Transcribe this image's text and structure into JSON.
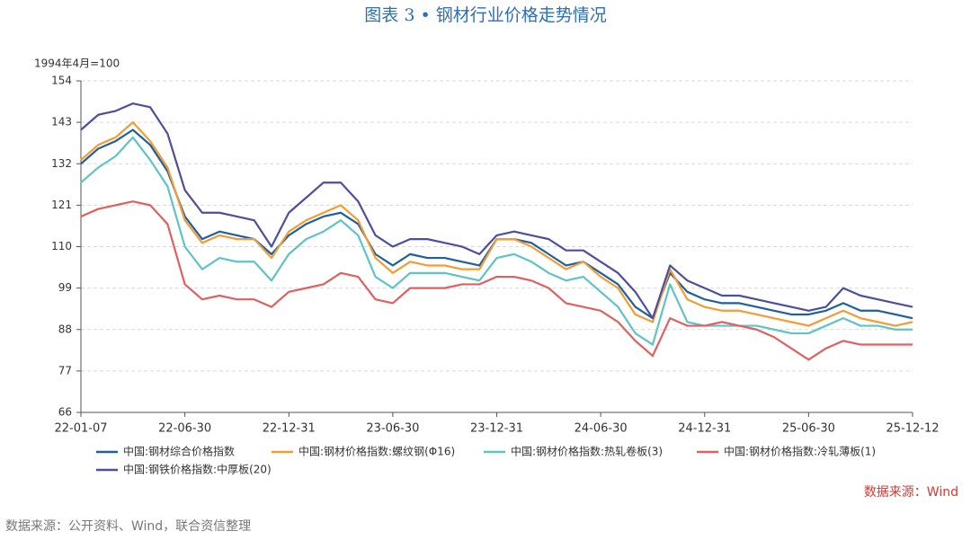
{
  "chart_data": {
    "type": "line",
    "title": "图表 3 • 钢材行业价格走势情况",
    "unit_label": "1994年4月=100",
    "source": "数据来源：Wind",
    "note": "数据来源：公开资料、Wind，联合资信整理",
    "categories": [
      "22-01-07",
      null,
      null,
      null,
      null,
      null,
      "22-06-30",
      null,
      null,
      null,
      null,
      null,
      "22-12-31",
      null,
      null,
      null,
      null,
      null,
      "23-06-30",
      null,
      null,
      null,
      null,
      null,
      "23-12-31",
      null,
      null,
      null,
      null,
      null,
      "24-06-30",
      null,
      null,
      null,
      null,
      null,
      "24-12-31",
      null,
      null,
      null,
      null,
      null,
      "25-06-30",
      null,
      null,
      null,
      null,
      null,
      "25-12-12"
    ],
    "ylim": [
      66,
      154
    ],
    "yticks": [
      66,
      77,
      88,
      99,
      110,
      121,
      132,
      143,
      154
    ],
    "grid": true,
    "series": [
      {
        "name": "中国:钢材综合价格指数",
        "color": "#1f5f9e",
        "values": [
          132,
          136,
          138,
          141,
          137,
          130,
          118,
          112,
          114,
          113,
          112,
          108,
          113,
          116,
          118,
          119,
          116,
          108,
          105,
          108,
          107,
          107,
          106,
          105,
          112,
          112,
          111,
          108,
          105,
          106,
          103,
          100,
          94,
          91,
          103,
          98,
          96,
          95,
          95,
          94,
          93,
          92,
          92,
          93,
          95,
          93,
          93,
          92,
          91
        ]
      },
      {
        "name": "中国:钢材价格指数:螺纹钢(Φ16)",
        "color": "#f39c34",
        "values": [
          133,
          137,
          139,
          143,
          138,
          131,
          117,
          111,
          113,
          112,
          112,
          107,
          114,
          117,
          119,
          121,
          117,
          107,
          103,
          106,
          105,
          105,
          104,
          104,
          112,
          112,
          110,
          107,
          104,
          106,
          102,
          99,
          92,
          90,
          104,
          96,
          94,
          93,
          93,
          92,
          91,
          90,
          89,
          91,
          93,
          91,
          90,
          89,
          90
        ]
      },
      {
        "name": "中国:钢材价格指数:热轧卷板(3)",
        "color": "#5ec4c4",
        "values": [
          127,
          131,
          134,
          139,
          133,
          126,
          110,
          104,
          107,
          106,
          106,
          101,
          108,
          112,
          114,
          117,
          113,
          102,
          99,
          103,
          103,
          103,
          102,
          101,
          107,
          108,
          106,
          103,
          101,
          102,
          98,
          94,
          87,
          84,
          100,
          90,
          89,
          89,
          89,
          89,
          88,
          87,
          87,
          89,
          91,
          89,
          89,
          88,
          88
        ]
      },
      {
        "name": "中国:钢材价格指数:冷轧薄板(1)",
        "color": "#e06060",
        "values": [
          118,
          120,
          121,
          122,
          121,
          116,
          100,
          96,
          97,
          96,
          96,
          94,
          98,
          99,
          100,
          103,
          102,
          96,
          95,
          99,
          99,
          99,
          100,
          100,
          102,
          102,
          101,
          99,
          95,
          94,
          93,
          90,
          85,
          81,
          91,
          89,
          89,
          90,
          89,
          88,
          86,
          83,
          80,
          83,
          85,
          84,
          84,
          84,
          84
        ]
      },
      {
        "name": "中国:钢铁价格指数:中厚板(20)",
        "color": "#4d4e9e",
        "values": [
          141,
          145,
          146,
          148,
          147,
          140,
          125,
          119,
          119,
          118,
          117,
          110,
          119,
          123,
          127,
          127,
          122,
          113,
          110,
          112,
          112,
          111,
          110,
          108,
          113,
          114,
          113,
          112,
          109,
          109,
          106,
          103,
          98,
          91,
          105,
          101,
          99,
          97,
          97,
          96,
          95,
          94,
          93,
          94,
          99,
          97,
          96,
          95,
          94
        ]
      }
    ]
  }
}
